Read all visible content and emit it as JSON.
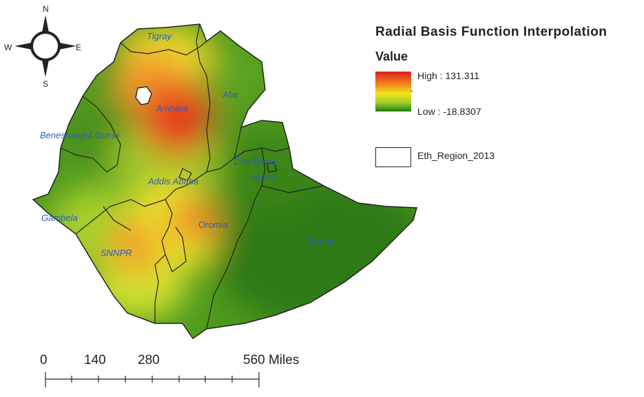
{
  "map": {
    "regions": [
      {
        "name": "Tigray"
      },
      {
        "name": "Amhara"
      },
      {
        "name": "Afar"
      },
      {
        "name": "Beneshangul Gumu"
      },
      {
        "name": "Addis Ababa"
      },
      {
        "name": "Dire Dawa"
      },
      {
        "name": "Harari"
      },
      {
        "name": "Gambela"
      },
      {
        "name": "Oromia"
      },
      {
        "name": "Somali"
      },
      {
        "name": "SNNPR"
      }
    ],
    "label_color": "#2a5fb8",
    "boundary_color": "#222222"
  },
  "north_arrow": {
    "n": "N",
    "s": "S",
    "e": "E",
    "w": "W"
  },
  "legend": {
    "title": "Radial Basis Function Interpolation",
    "field": "Value",
    "high": "High : 131.311",
    "low": "Low : -18.8307",
    "layer": "Eth_Region_2013",
    "colors": {
      "high": "#d91f1f",
      "mid": "#f4e41c",
      "low": "#1f7c12"
    }
  },
  "scale_bar": {
    "ticks": [
      "0",
      "140",
      "280",
      "560"
    ],
    "unit": "Miles"
  }
}
